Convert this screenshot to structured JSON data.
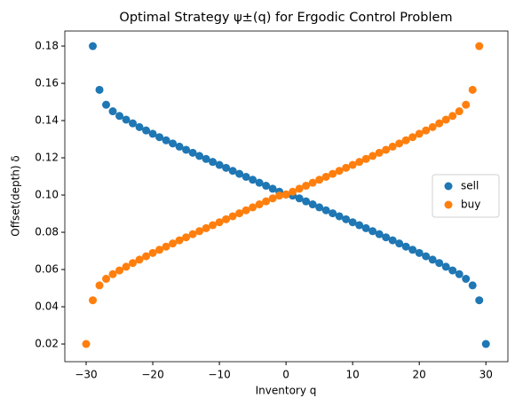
{
  "chart_data": {
    "type": "scatter",
    "title": "Optimal Strategy ψ±(q) for Ergodic Control Problem",
    "x_label": "Inventory q",
    "y_label": "Offset(depth) δ",
    "xlim": [
      -33.2,
      33.3
    ],
    "ylim": [
      0.0105,
      0.1881
    ],
    "xticks": [
      {
        "value": -30,
        "label": "−30"
      },
      {
        "value": -20,
        "label": "−20"
      },
      {
        "value": -10,
        "label": "−10"
      },
      0,
      10,
      20,
      30
    ],
    "yticks": [
      0.02,
      0.04,
      0.06,
      0.08,
      {
        "value": 0.1,
        "label": "0.10"
      },
      0.12,
      0.14,
      0.16,
      0.18
    ],
    "legend": "center right",
    "series": [
      {
        "name": "sell",
        "color": "#1f77b4",
        "x": [
          -29,
          -28,
          -27,
          -26,
          -25,
          -24,
          -23,
          -22,
          -21,
          -20,
          -19,
          -18,
          -17,
          -16,
          -15,
          -14,
          -13,
          -12,
          -11,
          -10,
          -9,
          -8,
          -7,
          -6,
          -5,
          -4,
          -3,
          -2,
          -1,
          0,
          1,
          2,
          3,
          4,
          5,
          6,
          7,
          8,
          9,
          10,
          11,
          12,
          13,
          14,
          15,
          16,
          17,
          18,
          19,
          20,
          21,
          22,
          23,
          24,
          25,
          26,
          27,
          28,
          29,
          30
        ],
        "values": [
          0.18,
          0.1565,
          0.1485,
          0.145,
          0.1425,
          0.1405,
          0.1385,
          0.1365,
          0.1347,
          0.1329,
          0.1311,
          0.1294,
          0.1277,
          0.126,
          0.1243,
          0.1227,
          0.121,
          0.1194,
          0.1178,
          0.1162,
          0.1146,
          0.113,
          0.1114,
          0.1098,
          0.1082,
          0.1066,
          0.105,
          0.1034,
          0.1018,
          0.1003,
          0.0997,
          0.0982,
          0.0966,
          0.095,
          0.0934,
          0.0918,
          0.0902,
          0.0886,
          0.087,
          0.0854,
          0.0838,
          0.0822,
          0.0806,
          0.079,
          0.0773,
          0.0757,
          0.074,
          0.0723,
          0.0706,
          0.0689,
          0.0671,
          0.0653,
          0.0635,
          0.0615,
          0.0595,
          0.0575,
          0.055,
          0.0515,
          0.0435,
          0.02
        ]
      },
      {
        "name": "buy",
        "color": "#ff7f0e",
        "x": [
          -30,
          -29,
          -28,
          -27,
          -26,
          -25,
          -24,
          -23,
          -22,
          -21,
          -20,
          -19,
          -18,
          -17,
          -16,
          -15,
          -14,
          -13,
          -12,
          -11,
          -10,
          -9,
          -8,
          -7,
          -6,
          -5,
          -4,
          -3,
          -2,
          -1,
          0,
          1,
          2,
          3,
          4,
          5,
          6,
          7,
          8,
          9,
          10,
          11,
          12,
          13,
          14,
          15,
          16,
          17,
          18,
          19,
          20,
          21,
          22,
          23,
          24,
          25,
          26,
          27,
          28,
          29
        ],
        "values": [
          0.02,
          0.0435,
          0.0515,
          0.055,
          0.0575,
          0.0595,
          0.0615,
          0.0635,
          0.0653,
          0.0671,
          0.0689,
          0.0706,
          0.0723,
          0.074,
          0.0757,
          0.0773,
          0.079,
          0.0806,
          0.0822,
          0.0838,
          0.0854,
          0.087,
          0.0886,
          0.0902,
          0.0918,
          0.0934,
          0.095,
          0.0966,
          0.0982,
          0.0997,
          0.1003,
          0.1018,
          0.1034,
          0.105,
          0.1066,
          0.1082,
          0.1098,
          0.1114,
          0.113,
          0.1146,
          0.1162,
          0.1178,
          0.1194,
          0.121,
          0.1227,
          0.1243,
          0.126,
          0.1277,
          0.1294,
          0.1311,
          0.1329,
          0.1347,
          0.1365,
          0.1385,
          0.1405,
          0.1425,
          0.145,
          0.1485,
          0.1565,
          0.18
        ]
      }
    ]
  }
}
